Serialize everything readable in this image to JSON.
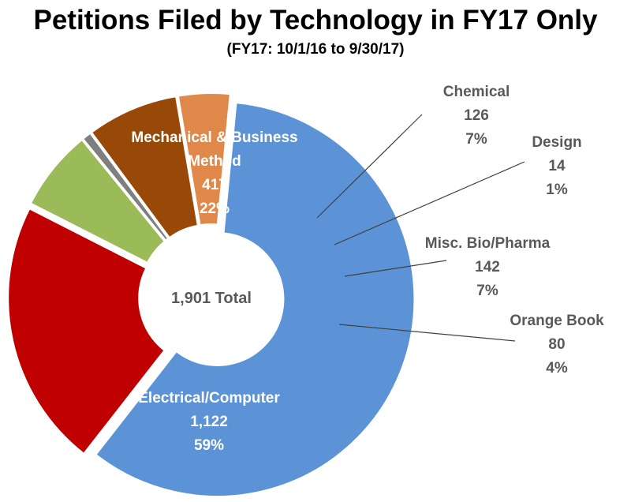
{
  "title": "Petitions Filed by Technology in FY17 Only",
  "subtitle": "(FY17: 10/1/16 to 9/30/17)",
  "chart_data": {
    "type": "pie",
    "style": "donut, exploded slices",
    "total_label": "1,901 Total",
    "total": 1901,
    "slices": [
      {
        "name": "Mechanical & Business Method",
        "name_lines": [
          "Mechanical & Business",
          "Method"
        ],
        "value": 417,
        "value_label": "417",
        "percent_label": "22%",
        "color": "#c00000",
        "label_position": "inside"
      },
      {
        "name": "Chemical",
        "name_lines": [
          "Chemical"
        ],
        "value": 126,
        "value_label": "126",
        "percent_label": "7%",
        "color": "#9bbb59",
        "label_position": "outside"
      },
      {
        "name": "Design",
        "name_lines": [
          "Design"
        ],
        "value": 14,
        "value_label": "14",
        "percent_label": "1%",
        "color": "#7f7f7f",
        "label_position": "outside"
      },
      {
        "name": "Misc. Bio/Pharma",
        "name_lines": [
          "Misc. Bio/Pharma"
        ],
        "value": 142,
        "value_label": "142",
        "percent_label": "7%",
        "color": "#984807",
        "label_position": "outside"
      },
      {
        "name": "Orange Book",
        "name_lines": [
          "Orange Book"
        ],
        "value": 80,
        "value_label": "80",
        "percent_label": "4%",
        "color": "#e0884a",
        "label_position": "outside"
      },
      {
        "name": "Electrical/Computer",
        "name_lines": [
          "Electrical/Computer"
        ],
        "value": 1122,
        "value_label": "1,122",
        "percent_label": "59%",
        "color": "#5b93d6",
        "label_position": "inside"
      }
    ]
  }
}
